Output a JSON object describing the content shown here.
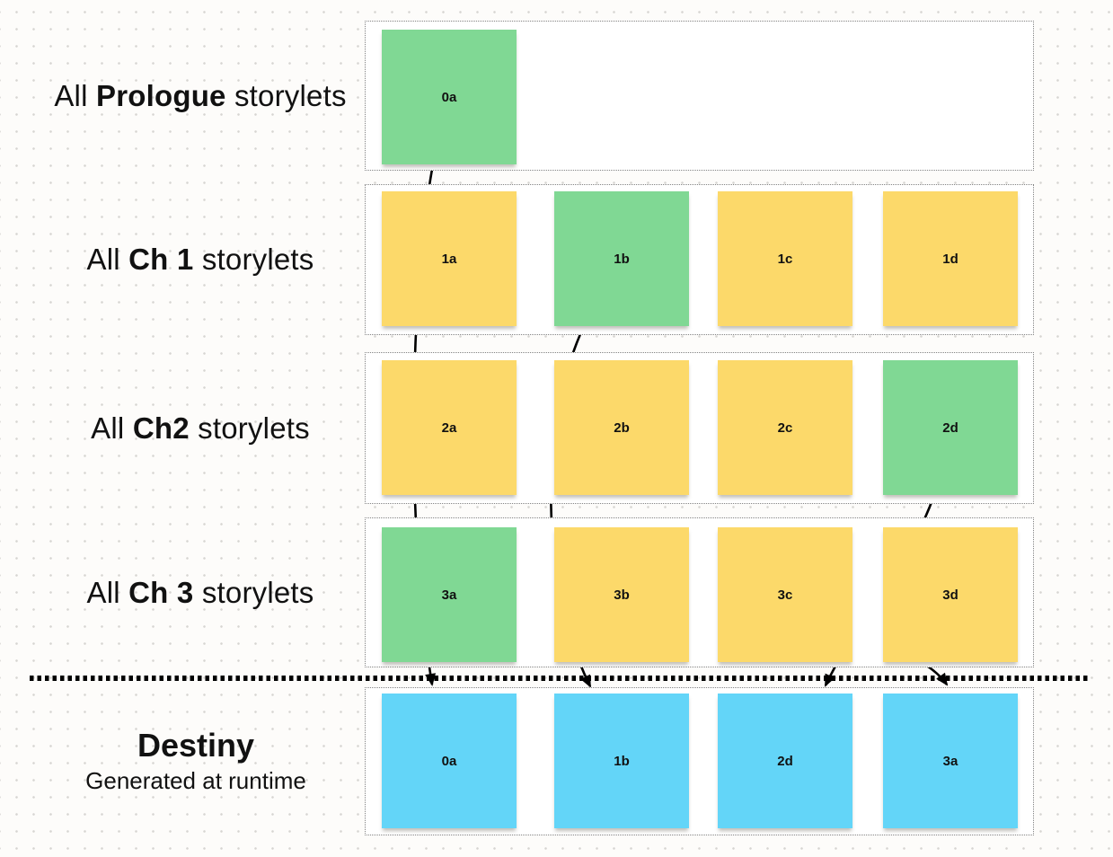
{
  "diagram": {
    "rows": [
      {
        "name": "prologue",
        "label": {
          "pre": "All ",
          "bold": "Prologue",
          "post": " storylets"
        },
        "cards": [
          {
            "label": "0a",
            "color": "green"
          }
        ]
      },
      {
        "name": "ch1",
        "label": {
          "pre": "All ",
          "bold": "Ch 1",
          "post": " storylets"
        },
        "cards": [
          {
            "label": "1a",
            "color": "yellow"
          },
          {
            "label": "1b",
            "color": "green"
          },
          {
            "label": "1c",
            "color": "yellow"
          },
          {
            "label": "1d",
            "color": "yellow"
          }
        ]
      },
      {
        "name": "ch2",
        "label": {
          "pre": "All ",
          "bold": "Ch2",
          "post": " storylets"
        },
        "cards": [
          {
            "label": "2a",
            "color": "yellow"
          },
          {
            "label": "2b",
            "color": "yellow"
          },
          {
            "label": "2c",
            "color": "yellow"
          },
          {
            "label": "2d",
            "color": "green"
          }
        ]
      },
      {
        "name": "ch3",
        "label": {
          "pre": "All ",
          "bold": "Ch 3",
          "post": " storylets"
        },
        "cards": [
          {
            "label": "3a",
            "color": "green"
          },
          {
            "label": "3b",
            "color": "yellow"
          },
          {
            "label": "3c",
            "color": "yellow"
          },
          {
            "label": "3d",
            "color": "yellow"
          }
        ]
      },
      {
        "name": "destiny",
        "title": "Destiny",
        "subtitle": "Generated at runtime",
        "cards": [
          {
            "label": "0a",
            "color": "blue"
          },
          {
            "label": "1b",
            "color": "blue"
          },
          {
            "label": "2d",
            "color": "blue"
          },
          {
            "label": "3a",
            "color": "blue"
          }
        ]
      }
    ],
    "arrows": [
      {
        "from": "prologue/0a",
        "to": "destiny/0a"
      },
      {
        "from": "ch1/1b",
        "to": "destiny/1b"
      },
      {
        "from": "ch2/2d",
        "to": "destiny/2d"
      },
      {
        "from": "ch3/3a",
        "to": "destiny/3a"
      }
    ],
    "colors": {
      "yellow": "#fcd96a",
      "green": "#80d894",
      "blue": "#63d5f8",
      "arrow": "#000000"
    }
  }
}
